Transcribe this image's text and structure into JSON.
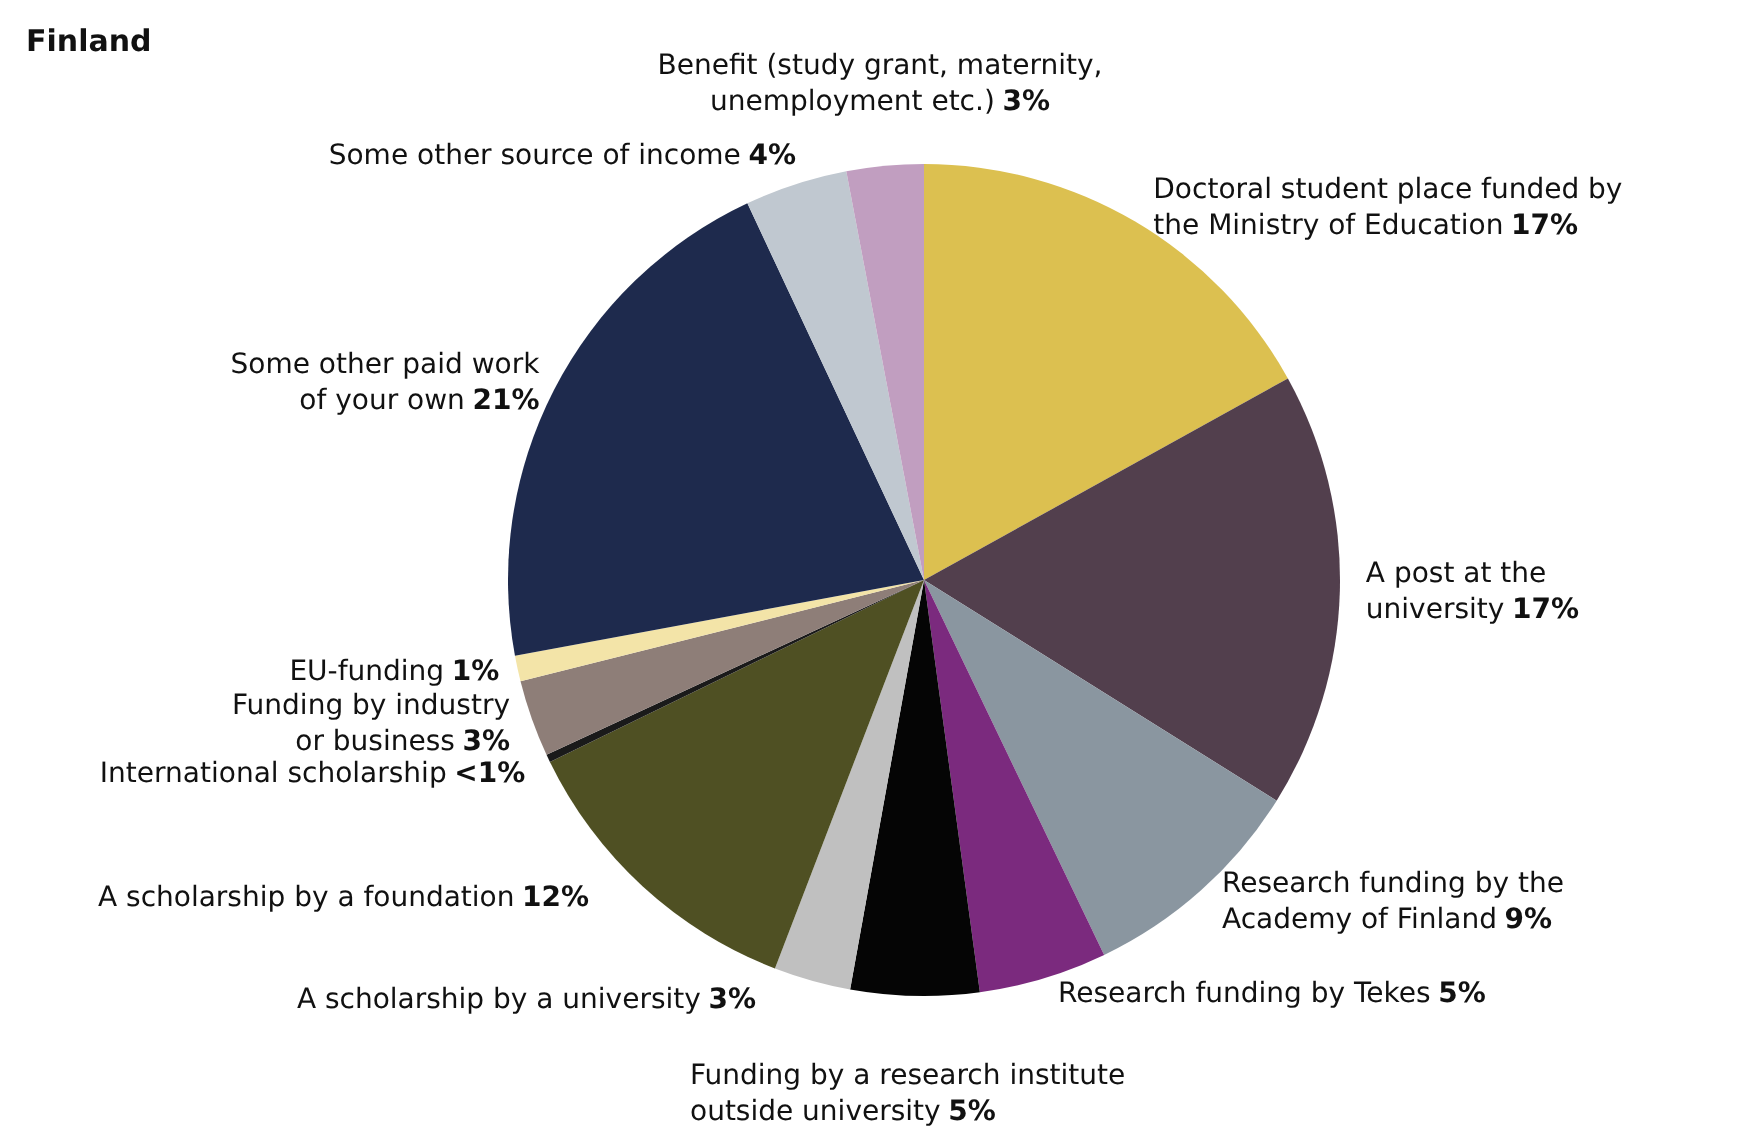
{
  "chart_data": {
    "type": "pie",
    "title": "Finland",
    "categories": [
      "Doctoral student place funded by\nthe Ministry of Education",
      "A post at the\nuniversity",
      "Research funding by the\nAcademy of Finland",
      "Research funding by Tekes",
      "Funding by a research institute\noutside university",
      "A scholarship by a university",
      "A scholarship by a foundation",
      "International scholarship",
      "Funding by industry\nor business",
      "EU-funding",
      "Some other paid work\nof your own",
      "Some other source of income",
      "Benefit (study grant, maternity,\nunemployment etc.)"
    ],
    "values": [
      17,
      17,
      9,
      5,
      5,
      3,
      12,
      0.3,
      3,
      1,
      21,
      4,
      3
    ],
    "value_labels": [
      "17%",
      "17%",
      "9%",
      "5%",
      "5%",
      "3%",
      "12%",
      "<1%",
      "3%",
      "1%",
      "21%",
      "4%",
      "3%"
    ],
    "colors": [
      "#dcc050",
      "#523f4d",
      "#8a96a0",
      "#7b2a7e",
      "#050505",
      "#c0c0c0",
      "#4f5023",
      "#1a1a1a",
      "#8e7e78",
      "#f3e4a8",
      "#1e2a4d",
      "#c0c8d0",
      "#c19ec0"
    ],
    "legend": false
  }
}
